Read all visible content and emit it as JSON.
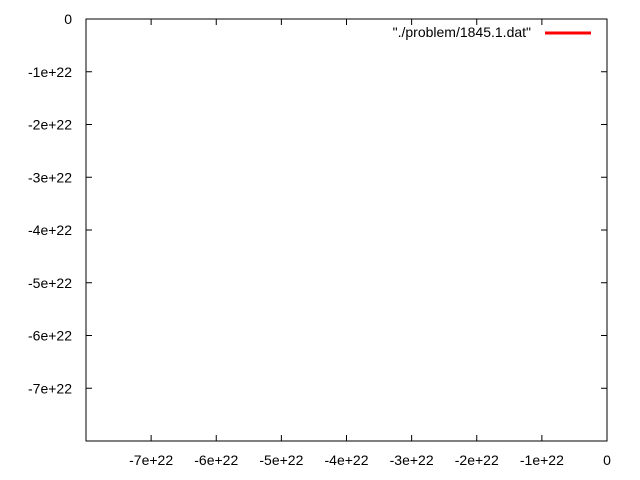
{
  "chart_data": {
    "type": "line",
    "title": "",
    "xlabel": "",
    "ylabel": "",
    "xlim": [
      -8e+22,
      0
    ],
    "ylim": [
      -8e+22,
      0
    ],
    "grid": false,
    "legend_placement": "top-right",
    "x_ticks": [
      {
        "value": -7e+22,
        "label": "-7e+22"
      },
      {
        "value": -6e+22,
        "label": "-6e+22"
      },
      {
        "value": -5e+22,
        "label": "-5e+22"
      },
      {
        "value": -4e+22,
        "label": "-4e+22"
      },
      {
        "value": -3e+22,
        "label": "-3e+22"
      },
      {
        "value": -2e+22,
        "label": "-2e+22"
      },
      {
        "value": -1e+22,
        "label": "-1e+22"
      },
      {
        "value": 0,
        "label": "0"
      }
    ],
    "y_ticks": [
      {
        "value": 0,
        "label": "0"
      },
      {
        "value": -1e+22,
        "label": "-1e+22"
      },
      {
        "value": -2e+22,
        "label": "-2e+22"
      },
      {
        "value": -3e+22,
        "label": "-3e+22"
      },
      {
        "value": -4e+22,
        "label": "-4e+22"
      },
      {
        "value": -5e+22,
        "label": "-5e+22"
      },
      {
        "value": -6e+22,
        "label": "-6e+22"
      },
      {
        "value": -7e+22,
        "label": "-7e+22"
      }
    ],
    "series": [
      {
        "name": "\"./problem/1845.1.dat\"",
        "color": "#ff0000",
        "x": [],
        "y": []
      }
    ]
  }
}
